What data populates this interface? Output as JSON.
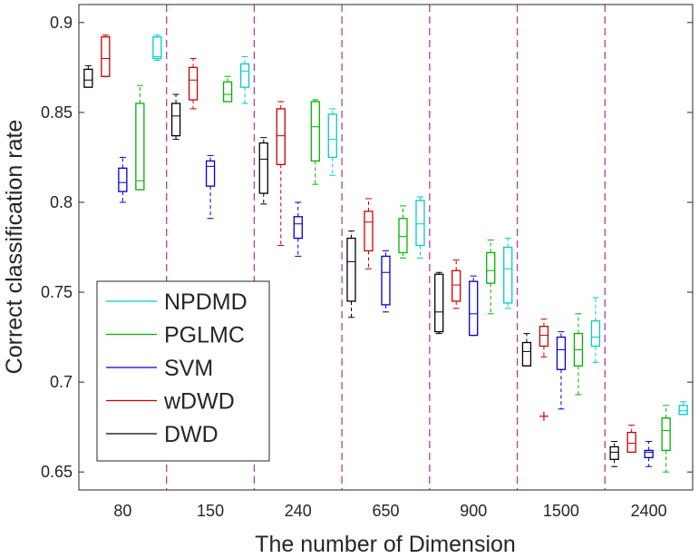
{
  "chart_data": {
    "type": "box",
    "title": "",
    "xlabel": "The number of Dimension",
    "ylabel": "Correct classification rate",
    "ylim": [
      0.64,
      0.91
    ],
    "yticks": [
      0.65,
      0.7,
      0.75,
      0.8,
      0.85,
      0.9
    ],
    "ytick_labels": [
      "0.65",
      "0.7",
      "0.75",
      "0.8",
      "0.85",
      "0.9"
    ],
    "categories": [
      "80",
      "150",
      "240",
      "650",
      "900",
      "1500",
      "2400"
    ],
    "group_separators": true,
    "grid": false,
    "legend_position": "left",
    "legend_order": [
      "NPDMD",
      "PGLMC",
      "SVM",
      "wDWD",
      "DWD"
    ],
    "series": [
      {
        "name": "DWD",
        "color": "#000000",
        "boxes": [
          {
            "whisker_low": 0.864,
            "q1": 0.864,
            "median": 0.868,
            "q3": 0.874,
            "whisker_high": 0.876,
            "outliers": []
          },
          {
            "whisker_low": 0.835,
            "q1": 0.837,
            "median": 0.848,
            "q3": 0.855,
            "whisker_high": 0.86,
            "outliers": []
          },
          {
            "whisker_low": 0.799,
            "q1": 0.805,
            "median": 0.824,
            "q3": 0.833,
            "whisker_high": 0.836,
            "outliers": []
          },
          {
            "whisker_low": 0.736,
            "q1": 0.745,
            "median": 0.767,
            "q3": 0.78,
            "whisker_high": 0.784,
            "outliers": []
          },
          {
            "whisker_low": 0.727,
            "q1": 0.728,
            "median": 0.739,
            "q3": 0.76,
            "whisker_high": 0.761,
            "outliers": []
          },
          {
            "whisker_low": 0.709,
            "q1": 0.709,
            "median": 0.717,
            "q3": 0.722,
            "whisker_high": 0.727,
            "outliers": []
          },
          {
            "whisker_low": 0.653,
            "q1": 0.657,
            "median": 0.661,
            "q3": 0.664,
            "whisker_high": 0.667,
            "outliers": []
          }
        ]
      },
      {
        "name": "wDWD",
        "color": "#cc0000",
        "boxes": [
          {
            "whisker_low": 0.87,
            "q1": 0.87,
            "median": 0.88,
            "q3": 0.892,
            "whisker_high": 0.893,
            "outliers": []
          },
          {
            "whisker_low": 0.852,
            "q1": 0.857,
            "median": 0.868,
            "q3": 0.875,
            "whisker_high": 0.88,
            "outliers": []
          },
          {
            "whisker_low": 0.776,
            "q1": 0.821,
            "median": 0.837,
            "q3": 0.852,
            "whisker_high": 0.856,
            "outliers": []
          },
          {
            "whisker_low": 0.763,
            "q1": 0.773,
            "median": 0.789,
            "q3": 0.795,
            "whisker_high": 0.802,
            "outliers": []
          },
          {
            "whisker_low": 0.741,
            "q1": 0.745,
            "median": 0.754,
            "q3": 0.762,
            "whisker_high": 0.768,
            "outliers": []
          },
          {
            "whisker_low": 0.714,
            "q1": 0.72,
            "median": 0.726,
            "q3": 0.731,
            "whisker_high": 0.735,
            "outliers": [
              0.681
            ]
          },
          {
            "whisker_low": 0.661,
            "q1": 0.661,
            "median": 0.666,
            "q3": 0.672,
            "whisker_high": 0.676,
            "outliers": []
          }
        ]
      },
      {
        "name": "SVM",
        "color": "#0000cc",
        "boxes": [
          {
            "whisker_low": 0.8,
            "q1": 0.806,
            "median": 0.811,
            "q3": 0.819,
            "whisker_high": 0.825,
            "outliers": []
          },
          {
            "whisker_low": 0.791,
            "q1": 0.809,
            "median": 0.82,
            "q3": 0.823,
            "whisker_high": 0.826,
            "outliers": []
          },
          {
            "whisker_low": 0.77,
            "q1": 0.78,
            "median": 0.788,
            "q3": 0.792,
            "whisker_high": 0.8,
            "outliers": []
          },
          {
            "whisker_low": 0.739,
            "q1": 0.743,
            "median": 0.761,
            "q3": 0.77,
            "whisker_high": 0.773,
            "outliers": []
          },
          {
            "whisker_low": 0.726,
            "q1": 0.726,
            "median": 0.738,
            "q3": 0.756,
            "whisker_high": 0.759,
            "outliers": []
          },
          {
            "whisker_low": 0.685,
            "q1": 0.707,
            "median": 0.718,
            "q3": 0.725,
            "whisker_high": 0.728,
            "outliers": []
          },
          {
            "whisker_low": 0.653,
            "q1": 0.658,
            "median": 0.661,
            "q3": 0.662,
            "whisker_high": 0.667,
            "outliers": []
          }
        ]
      },
      {
        "name": "PGLMC",
        "color": "#00b300",
        "boxes": [
          {
            "whisker_low": 0.807,
            "q1": 0.807,
            "median": 0.812,
            "q3": 0.855,
            "whisker_high": 0.865,
            "outliers": []
          },
          {
            "whisker_low": 0.856,
            "q1": 0.856,
            "median": 0.86,
            "q3": 0.867,
            "whisker_high": 0.87,
            "outliers": []
          },
          {
            "whisker_low": 0.81,
            "q1": 0.823,
            "median": 0.842,
            "q3": 0.856,
            "whisker_high": 0.857,
            "outliers": []
          },
          {
            "whisker_low": 0.769,
            "q1": 0.772,
            "median": 0.781,
            "q3": 0.791,
            "whisker_high": 0.798,
            "outliers": []
          },
          {
            "whisker_low": 0.738,
            "q1": 0.755,
            "median": 0.762,
            "q3": 0.772,
            "whisker_high": 0.779,
            "outliers": []
          },
          {
            "whisker_low": 0.693,
            "q1": 0.709,
            "median": 0.718,
            "q3": 0.727,
            "whisker_high": 0.738,
            "outliers": []
          },
          {
            "whisker_low": 0.65,
            "q1": 0.662,
            "median": 0.673,
            "q3": 0.68,
            "whisker_high": 0.687,
            "outliers": []
          }
        ]
      },
      {
        "name": "NPDMD",
        "color": "#00cccc",
        "boxes": [
          {
            "whisker_low": 0.879,
            "q1": 0.88,
            "median": 0.881,
            "q3": 0.892,
            "whisker_high": 0.893,
            "outliers": []
          },
          {
            "whisker_low": 0.855,
            "q1": 0.864,
            "median": 0.873,
            "q3": 0.877,
            "whisker_high": 0.881,
            "outliers": []
          },
          {
            "whisker_low": 0.815,
            "q1": 0.825,
            "median": 0.835,
            "q3": 0.849,
            "whisker_high": 0.852,
            "outliers": []
          },
          {
            "whisker_low": 0.769,
            "q1": 0.776,
            "median": 0.788,
            "q3": 0.801,
            "whisker_high": 0.803,
            "outliers": []
          },
          {
            "whisker_low": 0.741,
            "q1": 0.744,
            "median": 0.763,
            "q3": 0.775,
            "whisker_high": 0.78,
            "outliers": []
          },
          {
            "whisker_low": 0.711,
            "q1": 0.72,
            "median": 0.725,
            "q3": 0.734,
            "whisker_high": 0.747,
            "outliers": []
          },
          {
            "whisker_low": 0.682,
            "q1": 0.682,
            "median": 0.684,
            "q3": 0.687,
            "whisker_high": 0.689,
            "outliers": []
          }
        ]
      }
    ]
  }
}
